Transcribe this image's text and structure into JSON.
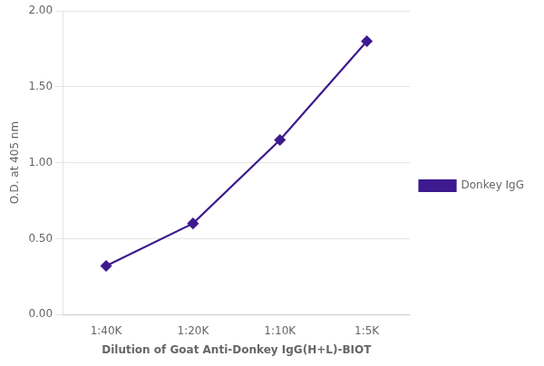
{
  "chart_data": {
    "type": "line",
    "categories": [
      "1:40K",
      "1:20K",
      "1:10K",
      "1:5K"
    ],
    "series": [
      {
        "name": "Donkey IgG",
        "color": "#3d1a8e",
        "marker": "diamond",
        "values": [
          0.32,
          0.6,
          1.15,
          1.8
        ]
      }
    ],
    "xlabel": "Dilution of Goat Anti-Donkey IgG(H+L)-BIOT",
    "ylabel": "O.D. at 405 nm",
    "ylim": [
      0.0,
      2.0
    ],
    "yticks": [
      {
        "value": 0.0,
        "label": "0.00"
      },
      {
        "value": 0.5,
        "label": "0.50"
      },
      {
        "value": 1.0,
        "label": "1.00"
      },
      {
        "value": 1.5,
        "label": "1.50"
      },
      {
        "value": 2.0,
        "label": "2.00"
      }
    ],
    "grid": true,
    "legend": "right"
  }
}
